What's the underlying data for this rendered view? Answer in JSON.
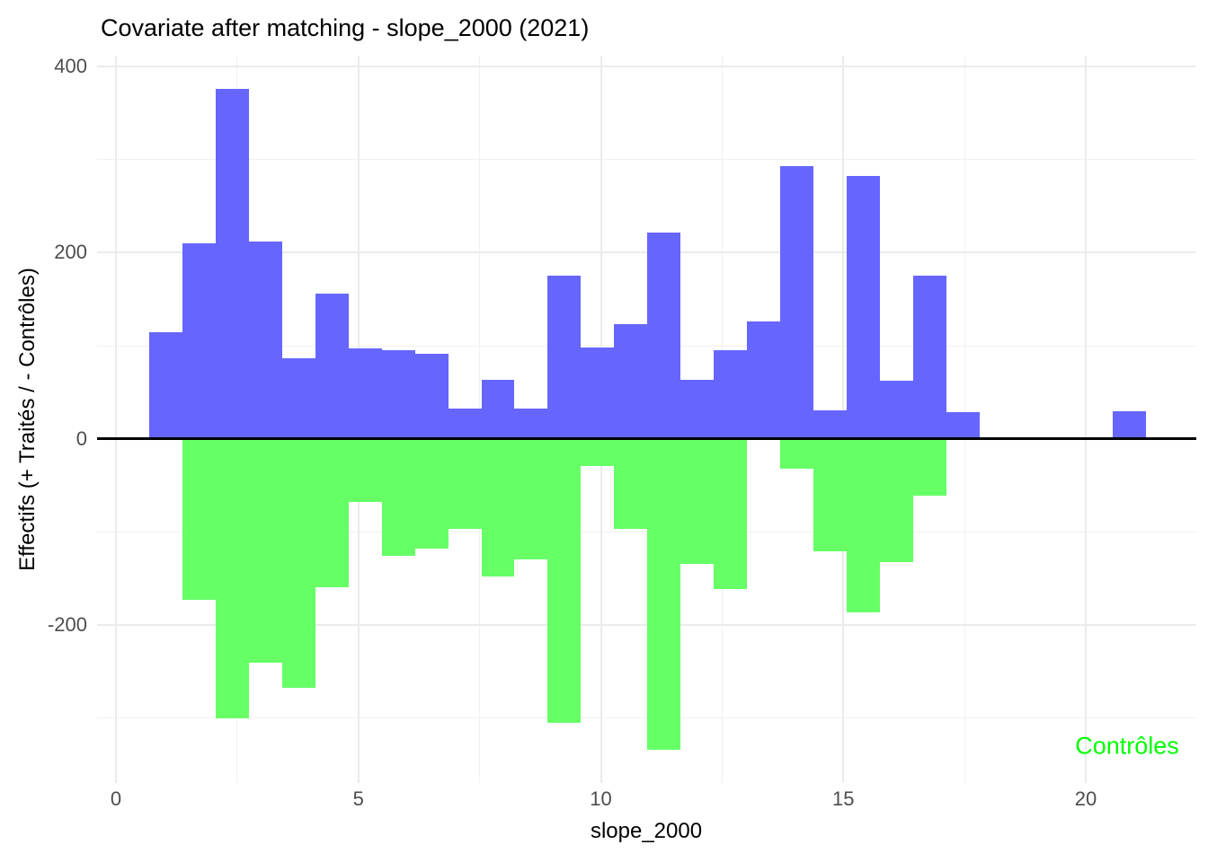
{
  "title": "Covariate after matching - slope_2000 (2021)",
  "annotation": {
    "text": "Contrôles",
    "color": "#00FF00"
  },
  "colors": {
    "traites_bar": "#6666FF",
    "controles_bar": "#66FF66",
    "grid_major": "#EBEBEB",
    "grid_minor": "#F1F1F1",
    "zero_line": "#000000",
    "tick_text": "#4D4D4D"
  },
  "chart_data": {
    "type": "bar",
    "subtype": "mirror-histogram",
    "title": "Covariate after matching - slope_2000 (2021)",
    "xlabel": "slope_2000",
    "ylabel": "Effectifs (+ Traités / - Contrôles)",
    "grid": true,
    "legend_position": "bottom-right",
    "xlim": [
      -0.39,
      22.28
    ],
    "ylim": [
      -369.5,
      411.5
    ],
    "x_major_ticks": [
      0,
      5,
      10,
      15,
      20
    ],
    "x_minor_ticks": [
      2.5,
      7.5,
      12.5,
      17.5
    ],
    "y_major_ticks": [
      400,
      200,
      0,
      -200
    ],
    "y_minor_ticks": [
      300,
      100,
      -100,
      -300
    ],
    "x_tick_labels": [
      "0",
      "5",
      "10",
      "15",
      "20"
    ],
    "y_tick_labels": [
      "400",
      "200",
      "0",
      "-200"
    ],
    "bin_width": 0.685,
    "bin_starts": [
      0.685,
      1.37,
      2.055,
      2.74,
      3.425,
      4.11,
      4.795,
      5.48,
      6.165,
      6.85,
      7.535,
      8.22,
      8.905,
      9.59,
      10.275,
      10.96,
      11.645,
      12.33,
      13.015,
      13.7,
      14.385,
      15.07,
      15.755,
      16.44,
      17.125,
      17.81,
      18.495,
      19.18,
      19.865,
      20.55
    ],
    "series": [
      {
        "name": "Traités",
        "sign": "positive",
        "color": "#6666FF",
        "values": [
          115,
          210,
          376,
          212,
          87,
          156,
          97,
          95,
          91,
          33,
          63,
          33,
          175,
          98,
          123,
          222,
          63,
          95,
          126,
          293,
          31,
          282,
          62,
          175,
          29,
          0,
          0,
          0,
          0,
          30
        ]
      },
      {
        "name": "Contrôles",
        "sign": "negative",
        "color": "#66FF66",
        "values": [
          0,
          -173,
          -300,
          -240,
          -267,
          -159,
          -68,
          -126,
          -118,
          -97,
          -148,
          -129,
          -305,
          -29,
          -97,
          -334,
          -134,
          -161,
          0,
          -32,
          -121,
          -186,
          -132,
          -61,
          0,
          0,
          0,
          0,
          0,
          0
        ]
      }
    ]
  }
}
